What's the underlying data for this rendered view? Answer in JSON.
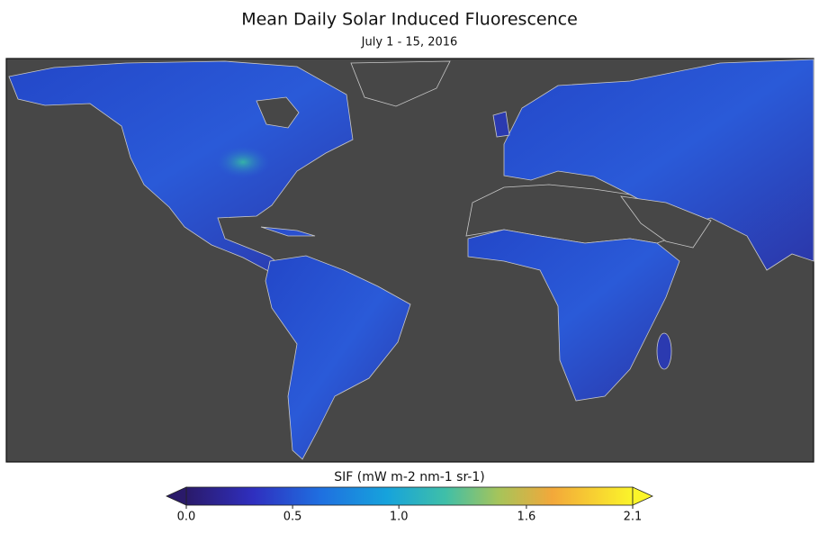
{
  "title": "Mean Daily Solar Induced Fluorescence",
  "subtitle": "July 1 - 15, 2016",
  "colorbar": {
    "label": "SIF (mW m-2 nm-1 sr-1)",
    "range": [
      0,
      2.1
    ],
    "ticks": [
      {
        "value": 0,
        "label": "0.0"
      },
      0.5,
      {
        "value": 1,
        "label": "1.0"
      },
      1.6,
      2.1
    ]
  }
}
